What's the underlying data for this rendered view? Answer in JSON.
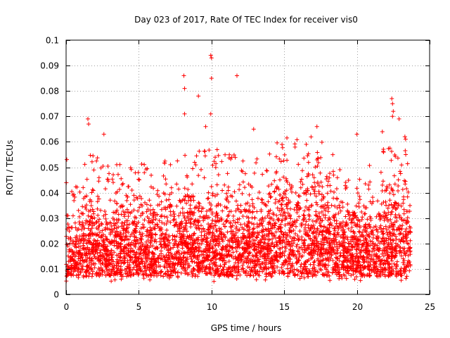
{
  "chart_data": {
    "type": "scatter",
    "title": "Day 023 of 2017, Rate Of TEC Index for receiver vis0",
    "xlabel": "GPS time / hours",
    "ylabel": "ROTI / TECUs",
    "xlim": [
      0,
      25
    ],
    "ylim": [
      0,
      0.1
    ],
    "x_ticks": [
      0,
      5,
      10,
      15,
      20,
      25
    ],
    "y_ticks": [
      0,
      0.01,
      0.02,
      0.03,
      0.04,
      0.05,
      0.06,
      0.07,
      0.08,
      0.09,
      0.1
    ],
    "x_tick_labels": [
      "0",
      "5",
      "10",
      "15",
      "20",
      "25"
    ],
    "y_tick_labels": [
      "0",
      "0.01",
      "0.02",
      "0.03",
      "0.04",
      "0.05",
      "0.06",
      "0.07",
      "0.08",
      "0.09",
      "0.1"
    ],
    "grid": true,
    "marker": "+",
    "color": "#ff0000",
    "series": [
      {
        "name": "vis0",
        "data_range_hours": [
          0,
          23.7
        ],
        "outliers": [
          [
            0.05,
            0.053
          ],
          [
            1.5,
            0.069
          ],
          [
            1.55,
            0.067
          ],
          [
            2.6,
            0.063
          ],
          [
            8.1,
            0.086
          ],
          [
            8.15,
            0.081
          ],
          [
            8.15,
            0.071
          ],
          [
            9.1,
            0.078
          ],
          [
            9.6,
            0.066
          ],
          [
            9.95,
            0.094
          ],
          [
            10.0,
            0.093
          ],
          [
            10.0,
            0.085
          ],
          [
            9.95,
            0.071
          ],
          [
            11.75,
            0.086
          ],
          [
            12.9,
            0.065
          ],
          [
            17.25,
            0.066
          ],
          [
            20.0,
            0.063
          ],
          [
            22.4,
            0.077
          ],
          [
            22.45,
            0.075
          ],
          [
            22.5,
            0.072
          ],
          [
            22.45,
            0.07
          ],
          [
            21.75,
            0.064
          ],
          [
            22.9,
            0.069
          ],
          [
            23.3,
            0.062
          ],
          [
            23.35,
            0.061
          ]
        ],
        "cluster_model": {
          "n_points": 4200,
          "baseline_min_tecu": 0.005,
          "bands": [
            {
              "x_start": 0.0,
              "x_end": 1.0,
              "upper": 0.032
            },
            {
              "x_start": 1.0,
              "x_end": 2.5,
              "upper": 0.044
            },
            {
              "x_start": 2.5,
              "x_end": 6.0,
              "upper": 0.04
            },
            {
              "x_start": 6.0,
              "x_end": 8.0,
              "upper": 0.042
            },
            {
              "x_start": 8.0,
              "x_end": 11.0,
              "upper": 0.045
            },
            {
              "x_start": 11.0,
              "x_end": 14.5,
              "upper": 0.044
            },
            {
              "x_start": 14.5,
              "x_end": 18.5,
              "upper": 0.05
            },
            {
              "x_start": 18.5,
              "x_end": 21.5,
              "upper": 0.04
            },
            {
              "x_start": 21.5,
              "x_end": 23.7,
              "upper": 0.046
            }
          ]
        }
      }
    ]
  }
}
